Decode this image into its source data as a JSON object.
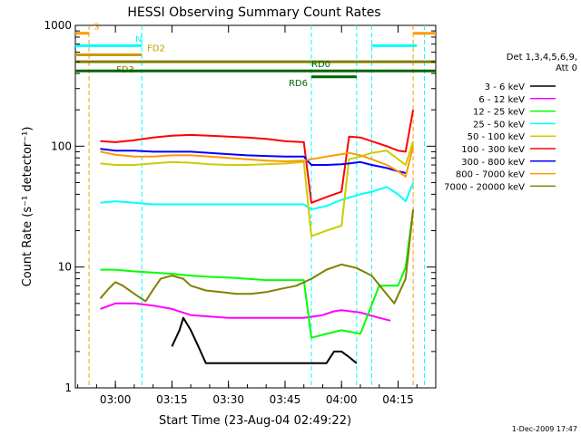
{
  "chart_data": {
    "type": "line",
    "title": "HESSI Observing Summary Count Rates",
    "xlabel": "Start Time (23-Aug-04 02:49:22)",
    "ylabel": "Count Rate (s⁻¹ detector⁻¹)",
    "yscale": "log",
    "ylim": [
      1,
      1000
    ],
    "xlim": [
      "02:49:22",
      "04:25:00"
    ],
    "x_ticks": [
      "03:00",
      "03:15",
      "03:30",
      "03:45",
      "04:00",
      "04:15"
    ],
    "y_ticks": [
      "1",
      "10",
      "100",
      "1000"
    ],
    "legend_title": [
      "Det 1,3,4,5,6,9,",
      "Att 0"
    ],
    "legend_position": "right",
    "footer_date": "1-Dec-2009 17:47",
    "series": [
      {
        "name": "3 - 6 keV",
        "color": "#000000",
        "x": [
          "03:15",
          "03:17",
          "03:18",
          "03:20",
          "03:22",
          "03:24",
          "03:56",
          "03:58",
          "04:00",
          "04:02",
          "04:04"
        ],
        "values": [
          2.2,
          3.0,
          3.8,
          3.0,
          2.2,
          1.6,
          1.6,
          2.0,
          2.0,
          1.8,
          1.6
        ]
      },
      {
        "name": "6 - 12 keV",
        "color": "#ff00ff",
        "x": [
          "02:56",
          "03:00",
          "03:05",
          "03:10",
          "03:15",
          "03:20",
          "03:25",
          "03:30",
          "03:35",
          "03:40",
          "03:45",
          "03:50",
          "03:55",
          "03:58",
          "04:00",
          "04:05",
          "04:10",
          "04:13"
        ],
        "values": [
          4.5,
          5.0,
          5.0,
          4.8,
          4.5,
          4.0,
          3.9,
          3.8,
          3.8,
          3.8,
          3.8,
          3.8,
          4.0,
          4.3,
          4.4,
          4.2,
          3.8,
          3.6
        ]
      },
      {
        "name": "12 - 25 keV",
        "color": "#00ff00",
        "x": [
          "02:56",
          "03:00",
          "03:05",
          "03:10",
          "03:15",
          "03:20",
          "03:25",
          "03:30",
          "03:35",
          "03:40",
          "03:45",
          "03:50",
          "03:52",
          "03:56",
          "04:00",
          "04:05",
          "04:10",
          "04:15",
          "04:17",
          "04:19"
        ],
        "values": [
          9.5,
          9.5,
          9.2,
          9.0,
          8.8,
          8.5,
          8.3,
          8.2,
          8.0,
          7.8,
          7.8,
          7.8,
          2.6,
          2.8,
          3.0,
          2.8,
          7.0,
          7.0,
          10,
          30
        ]
      },
      {
        "name": "25 - 50 keV",
        "color": "#00ffff",
        "x": [
          "02:56",
          "03:00",
          "03:05",
          "03:10",
          "03:15",
          "03:20",
          "03:25",
          "03:30",
          "03:35",
          "03:40",
          "03:45",
          "03:50",
          "03:52",
          "03:56",
          "04:00",
          "04:05",
          "04:08",
          "04:12",
          "04:15",
          "04:17",
          "04:19"
        ],
        "values": [
          34,
          35,
          34,
          33,
          33,
          33,
          33,
          33,
          33,
          33,
          33,
          33,
          30,
          32,
          36,
          40,
          42,
          46,
          40,
          35,
          50
        ]
      },
      {
        "name": "50 - 100 keV",
        "color": "#cccc00",
        "x": [
          "02:56",
          "03:00",
          "03:05",
          "03:10",
          "03:15",
          "03:20",
          "03:25",
          "03:30",
          "03:35",
          "03:40",
          "03:45",
          "03:50",
          "03:52",
          "03:56",
          "04:00",
          "04:02",
          "04:05",
          "04:08",
          "04:12",
          "04:15",
          "04:17",
          "04:19"
        ],
        "values": [
          72,
          70,
          70,
          72,
          74,
          73,
          71,
          70,
          70,
          71,
          72,
          74,
          18,
          20,
          22,
          78,
          82,
          88,
          92,
          78,
          70,
          110
        ]
      },
      {
        "name": "100 - 300 keV",
        "color": "#ff0000",
        "x": [
          "02:56",
          "03:00",
          "03:05",
          "03:10",
          "03:15",
          "03:20",
          "03:25",
          "03:30",
          "03:35",
          "03:40",
          "03:45",
          "03:50",
          "03:52",
          "03:56",
          "04:00",
          "04:02",
          "04:05",
          "04:08",
          "04:12",
          "04:15",
          "04:17",
          "04:19"
        ],
        "values": [
          110,
          108,
          112,
          118,
          122,
          124,
          122,
          120,
          118,
          115,
          110,
          108,
          34,
          38,
          42,
          120,
          118,
          110,
          100,
          92,
          90,
          200
        ]
      },
      {
        "name": "300 - 800 keV",
        "color": "#0000ff",
        "x": [
          "02:56",
          "03:00",
          "03:05",
          "03:10",
          "03:15",
          "03:20",
          "03:25",
          "03:30",
          "03:35",
          "03:40",
          "03:45",
          "03:50",
          "03:52",
          "03:56",
          "04:00",
          "04:02",
          "04:05",
          "04:08",
          "04:12",
          "04:15",
          "04:17"
        ],
        "values": [
          95,
          92,
          92,
          90,
          90,
          90,
          88,
          86,
          84,
          83,
          82,
          82,
          70,
          70,
          71,
          72,
          74,
          70,
          66,
          62,
          60
        ]
      },
      {
        "name": "800 - 7000 keV",
        "color": "#ff9900",
        "x": [
          "02:56",
          "03:00",
          "03:05",
          "03:10",
          "03:15",
          "03:20",
          "03:25",
          "03:30",
          "03:35",
          "03:40",
          "03:45",
          "03:50",
          "03:52",
          "03:56",
          "04:00",
          "04:02",
          "04:05",
          "04:08",
          "04:12",
          "04:15",
          "04:17",
          "04:19"
        ],
        "values": [
          90,
          85,
          82,
          82,
          84,
          84,
          82,
          80,
          78,
          76,
          75,
          76,
          78,
          82,
          86,
          88,
          84,
          78,
          70,
          62,
          56,
          100
        ]
      },
      {
        "name": "7000 - 20000 keV",
        "color": "#808000",
        "x": [
          "02:56",
          "02:58",
          "03:00",
          "03:02",
          "03:05",
          "03:08",
          "03:10",
          "03:12",
          "03:15",
          "03:18",
          "03:20",
          "03:24",
          "03:28",
          "03:32",
          "03:36",
          "03:40",
          "03:44",
          "03:48",
          "03:52",
          "03:56",
          "04:00",
          "04:04",
          "04:08",
          "04:11",
          "04:14",
          "04:17",
          "04:19"
        ],
        "values": [
          5.5,
          6.5,
          7.5,
          7.0,
          6.0,
          5.2,
          6.5,
          8.0,
          8.5,
          8.0,
          7.0,
          6.4,
          6.2,
          6.0,
          6.0,
          6.2,
          6.6,
          7.0,
          8.0,
          9.5,
          10.5,
          9.8,
          8.5,
          6.5,
          5.0,
          8.0,
          30
        ]
      }
    ],
    "flags": [
      {
        "label": "S",
        "color": "#ff9900",
        "level": 860,
        "segments": [
          [
            "02:49:22",
            "02:53"
          ],
          [
            "04:19",
            "04:25"
          ]
        ]
      },
      {
        "label": "N",
        "color": "#00ffff",
        "level": 680,
        "segments": [
          [
            "02:49:22",
            "03:07"
          ],
          [
            "04:08",
            "04:20"
          ]
        ]
      },
      {
        "label": "FD2",
        "color": "#cc9900",
        "level": 570,
        "segments": [
          [
            "02:49:22",
            "03:07"
          ]
        ]
      },
      {
        "label": "FD3",
        "color": "#808000",
        "level": 500,
        "segments": [
          [
            "02:49:22",
            "04:25"
          ]
        ]
      },
      {
        "label": "RD0",
        "color": "#006600",
        "level": 420,
        "segments": [
          [
            "02:49:22",
            "04:25"
          ]
        ]
      },
      {
        "label": "RD6",
        "color": "#006600",
        "level": 375,
        "segments": [
          [
            "03:52",
            "04:04"
          ]
        ]
      }
    ],
    "vlines": [
      {
        "x": "02:53",
        "color": "#ff9900"
      },
      {
        "x": "03:07",
        "color": "#00ffff"
      },
      {
        "x": "03:52",
        "color": "#00ffff"
      },
      {
        "x": "04:04",
        "color": "#00ffff"
      },
      {
        "x": "04:08",
        "color": "#00ffff"
      },
      {
        "x": "04:19",
        "color": "#ff9900"
      },
      {
        "x": "04:22",
        "color": "#00ffff"
      }
    ]
  }
}
